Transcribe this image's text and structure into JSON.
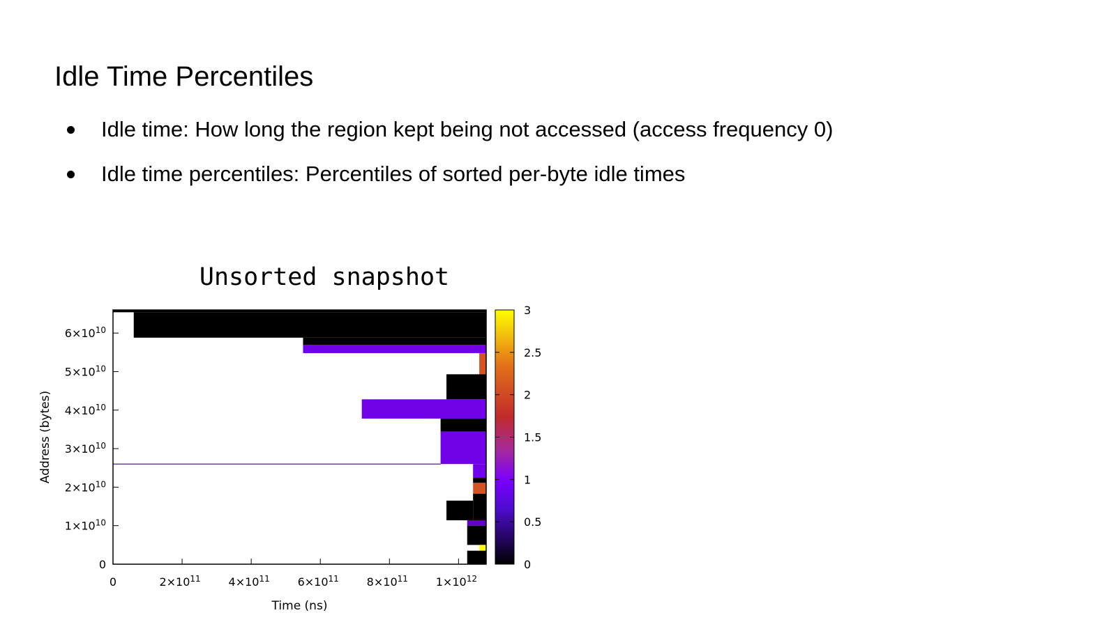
{
  "slide": {
    "title": "Idle Time Percentiles",
    "bullets": [
      "Idle time: How long the region kept being not accessed (access frequency 0)",
      "Idle time percentiles: Percentiles of sorted per-byte idle times"
    ]
  },
  "chart_data": {
    "type": "heatmap",
    "title": "Unsorted snapshot",
    "xlabel": "Time (ns)",
    "ylabel": "Address (bytes)",
    "xlim": [
      0,
      1080000000000
    ],
    "ylim": [
      0,
      66000000000
    ],
    "x_ticks": [
      {
        "value": 0,
        "base": "0",
        "exp": ""
      },
      {
        "value": 200000000000,
        "base": "2×10",
        "exp": "11"
      },
      {
        "value": 400000000000,
        "base": "4×10",
        "exp": "11"
      },
      {
        "value": 600000000000,
        "base": "6×10",
        "exp": "11"
      },
      {
        "value": 800000000000,
        "base": "8×10",
        "exp": "11"
      },
      {
        "value": 1000000000000,
        "base": "1×10",
        "exp": "12"
      }
    ],
    "y_ticks": [
      {
        "value": 0,
        "base": "0",
        "exp": ""
      },
      {
        "value": 10000000000,
        "base": "1×10",
        "exp": "10"
      },
      {
        "value": 20000000000,
        "base": "2×10",
        "exp": "10"
      },
      {
        "value": 30000000000,
        "base": "3×10",
        "exp": "10"
      },
      {
        "value": 40000000000,
        "base": "4×10",
        "exp": "10"
      },
      {
        "value": 50000000000,
        "base": "5×10",
        "exp": "10"
      },
      {
        "value": 60000000000,
        "base": "6×10",
        "exp": "10"
      }
    ],
    "colorbar": {
      "range": [
        0,
        3
      ],
      "ticks": [
        "0",
        "0.5",
        "1",
        "1.5",
        "2",
        "2.5",
        "3"
      ],
      "palette": [
        "#000000",
        "#7a00ff",
        "#c12b2b",
        "#e3701a",
        "#ffff00"
      ]
    },
    "cells": [
      {
        "x0": 0,
        "x1": 1080000000000,
        "y0": 65400000000,
        "y1": 66000000000,
        "value": 0
      },
      {
        "x0": 60000000000,
        "x1": 1080000000000,
        "y0": 58800000000,
        "y1": 65400000000,
        "value": 0
      },
      {
        "x0": 550000000000,
        "x1": 1080000000000,
        "y0": 56900000000,
        "y1": 58800000000,
        "value": 0
      },
      {
        "x0": 550000000000,
        "x1": 1080000000000,
        "y0": 54800000000,
        "y1": 56900000000,
        "value": 0.9
      },
      {
        "x0": 1060000000000,
        "x1": 1080000000000,
        "y0": 49300000000,
        "y1": 54800000000,
        "value": 2.1
      },
      {
        "x0": 965000000000,
        "x1": 1080000000000,
        "y0": 42800000000,
        "y1": 49300000000,
        "value": 0
      },
      {
        "x0": 720000000000,
        "x1": 1080000000000,
        "y0": 37800000000,
        "y1": 42800000000,
        "value": 0.9
      },
      {
        "x0": 948000000000,
        "x1": 1080000000000,
        "y0": 34400000000,
        "y1": 37800000000,
        "value": 0
      },
      {
        "x0": 948000000000,
        "x1": 1080000000000,
        "y0": 26000000000,
        "y1": 34400000000,
        "value": 0.9
      },
      {
        "x0": 0,
        "x1": 948000000000,
        "y0": 25900000000,
        "y1": 26100000000,
        "value": 0.5
      },
      {
        "x0": 1042000000000,
        "x1": 1080000000000,
        "y0": 22400000000,
        "y1": 26000000000,
        "value": 0.9
      },
      {
        "x0": 1042000000000,
        "x1": 1080000000000,
        "y0": 21100000000,
        "y1": 22400000000,
        "value": 0
      },
      {
        "x0": 1042000000000,
        "x1": 1080000000000,
        "y0": 18300000000,
        "y1": 21100000000,
        "value": 2.1
      },
      {
        "x0": 1042000000000,
        "x1": 1080000000000,
        "y0": 11400000000,
        "y1": 18300000000,
        "value": 0
      },
      {
        "x0": 965000000000,
        "x1": 1042000000000,
        "y0": 11400000000,
        "y1": 16500000000,
        "value": 0
      },
      {
        "x0": 1025000000000,
        "x1": 1080000000000,
        "y0": 10000000000,
        "y1": 11400000000,
        "value": 0.8
      },
      {
        "x0": 1025000000000,
        "x1": 1080000000000,
        "y0": 5000000000,
        "y1": 10000000000,
        "value": 0
      },
      {
        "x0": 1060000000000,
        "x1": 1080000000000,
        "y0": 3500000000,
        "y1": 5000000000,
        "value": 3
      },
      {
        "x0": 1025000000000,
        "x1": 1080000000000,
        "y0": 0,
        "y1": 3500000000,
        "value": 0
      }
    ]
  }
}
